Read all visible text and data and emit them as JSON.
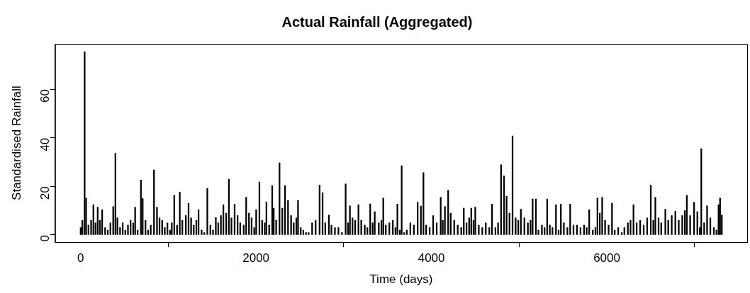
{
  "chart_data": {
    "type": "bar",
    "title": "Actual Rainfall (Aggregated)",
    "xlabel": "Time (days)",
    "ylabel": "Standardised Rainfall",
    "x": [
      1,
      20,
      46,
      63,
      90,
      120,
      146,
      170,
      195,
      220,
      246,
      280,
      310,
      340,
      372,
      397,
      420,
      450,
      480,
      510,
      540,
      570,
      600,
      622,
      650,
      688,
      708,
      740,
      770,
      800,
      828,
      837,
      871,
      900,
      930,
      960,
      990,
      1020,
      1040,
      1068,
      1100,
      1131,
      1160,
      1200,
      1231,
      1260,
      1290,
      1320,
      1345,
      1380,
      1410,
      1445,
      1480,
      1510,
      1542,
      1570,
      1600,
      1628,
      1660,
      1691,
      1720,
      1756,
      1790,
      1820,
      1860,
      1888,
      1920,
      1950,
      1980,
      2002,
      2039,
      2070,
      2100,
      2119,
      2150,
      2185,
      2202,
      2230,
      2268,
      2300,
      2331,
      2365,
      2400,
      2430,
      2460,
      2479,
      2510,
      2540,
      2570,
      2600,
      2640,
      2680,
      2725,
      2759,
      2790,
      2831,
      2860,
      2900,
      2940,
      2980,
      3022,
      3050,
      3071,
      3100,
      3130,
      3168,
      3200,
      3240,
      3270,
      3302,
      3330,
      3354,
      3400,
      3430,
      3451,
      3480,
      3520,
      3560,
      3590,
      3612,
      3640,
      3661,
      3690,
      3720,
      3760,
      3800,
      3843,
      3880,
      3909,
      3940,
      3980,
      4020,
      4060,
      4106,
      4130,
      4154,
      4191,
      4220,
      4260,
      4300,
      4340,
      4369,
      4400,
      4430,
      4454,
      4480,
      4500,
      4540,
      4580,
      4620,
      4660,
      4691,
      4730,
      4760,
      4794,
      4828,
      4857,
      4890,
      4925,
      4960,
      4990,
      5020,
      5060,
      5100,
      5130,
      5154,
      5191,
      5220,
      5260,
      5290,
      5320,
      5350,
      5380,
      5420,
      5450,
      5476,
      5510,
      5550,
      5582,
      5620,
      5660,
      5700,
      5740,
      5770,
      5799,
      5840,
      5870,
      5893,
      5920,
      5947,
      5980,
      6020,
      6059,
      6090,
      6130,
      6170,
      6200,
      6240,
      6270,
      6304,
      6340,
      6380,
      6420,
      6460,
      6501,
      6530,
      6553,
      6590,
      6620,
      6667,
      6700,
      6740,
      6781,
      6820,
      6860,
      6890,
      6912,
      6950,
      6995,
      7032,
      7060,
      7077,
      7110,
      7143,
      7180,
      7220,
      7250,
      7274,
      7291,
      7311
    ],
    "values": [
      3,
      6,
      75.5,
      15.2,
      4,
      6,
      12.4,
      5,
      11.4,
      6,
      10.4,
      3,
      2,
      5,
      11.7,
      33.7,
      7,
      3,
      5,
      2,
      4,
      6,
      5,
      11.4,
      2,
      22.6,
      15,
      6,
      2,
      4,
      null,
      26.8,
      11.4,
      7,
      6,
      3,
      5,
      2,
      5,
      16.3,
      4,
      17.7,
      6,
      8,
      13.1,
      7,
      4,
      6,
      10.4,
      2,
      1,
      19.1,
      4,
      2,
      7.2,
      5,
      8,
      12.4,
      9,
      23,
      7,
      12.7,
      8,
      5,
      4,
      15.5,
      9,
      7,
      3,
      10.4,
      21.8,
      6,
      5,
      13.5,
      4,
      20.3,
      11,
      6,
      29.7,
      11,
      20.3,
      14.2,
      8,
      5,
      7,
      14.2,
      3,
      2,
      1,
      1,
      5,
      6,
      20.5,
      17.4,
      5,
      8.2,
      4,
      3,
      3,
      1,
      21,
      5,
      12,
      7,
      6,
      12.4,
      6,
      4,
      3,
      12.8,
      5,
      9.6,
      5,
      6,
      15.2,
      4,
      5,
      6,
      3,
      12.7,
      2,
      28.5,
      1,
      2,
      5,
      4,
      13.4,
      11.9,
      25.7,
      4,
      3,
      8,
      5,
      15.5,
      6,
      11.7,
      18.3,
      9,
      6,
      4,
      3,
      11,
      5,
      7,
      11,
      6,
      11.5,
      4,
      3,
      5,
      3,
      12.7,
      3,
      5,
      28.9,
      24.3,
      16,
      9,
      40.8,
      7,
      6,
      10.6,
      7,
      5,
      6,
      14.8,
      14.8,
      2,
      4,
      3,
      14.8,
      4,
      3,
      12.4,
      2,
      12.7,
      5,
      3,
      12.7,
      4,
      4,
      3,
      4,
      3,
      10.4,
      2,
      3,
      15.2,
      9,
      15.5,
      6,
      4,
      13.1,
      2,
      3,
      1,
      3,
      5,
      6,
      12.4,
      5,
      6,
      4,
      7,
      20.5,
      6,
      15.5,
      7,
      5,
      10.6,
      6,
      8,
      9.8,
      6,
      8,
      10,
      16.3,
      8,
      13.4,
      9.6,
      3,
      35.5,
      5,
      12,
      7,
      3,
      2,
      12.4,
      15.2,
      8.2
    ],
    "color": "#000000",
    "xlim": [
      -290,
      7600
    ],
    "xticks": [
      0,
      2000,
      4000,
      6000
    ],
    "ylim": [
      -3,
      78.7
    ],
    "yticks": [
      0,
      20,
      40,
      60
    ]
  }
}
